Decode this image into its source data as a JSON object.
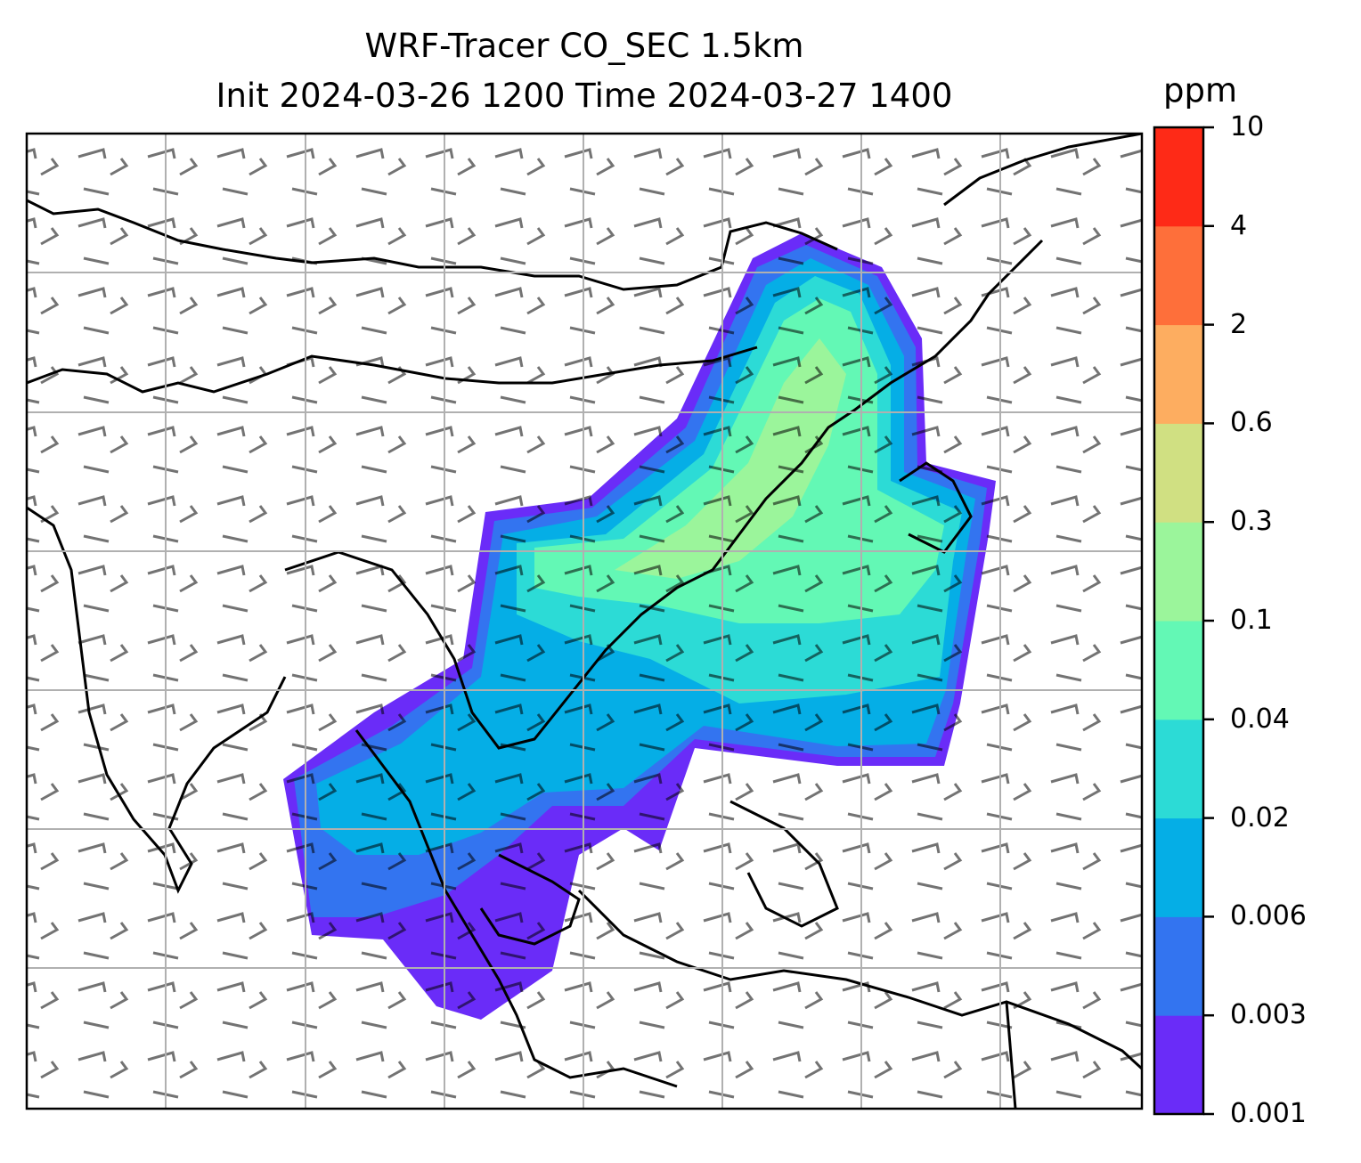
{
  "title": {
    "line1": "WRF-Tracer CO_SEC 1.5km",
    "line2": "Init 2024-03-26 1200 Time 2024-03-27 1400"
  },
  "colorbar": {
    "unit": "ppm",
    "levels": [
      "0.001",
      "0.003",
      "0.006",
      "0.02",
      "0.04",
      "0.1",
      "0.3",
      "0.6",
      "2",
      "4",
      "10"
    ],
    "colors": [
      "#6a2cf8",
      "#3374f0",
      "#05aee6",
      "#2cdbd6",
      "#63f8b5",
      "#9bf59b",
      "#d0e082",
      "#fdad60",
      "#fe6f3a",
      "#fe2a17"
    ]
  },
  "map": {
    "field": "CO_SEC",
    "overlays": [
      "coastlines",
      "country-borders",
      "gridlines",
      "wind-barbs"
    ]
  }
}
